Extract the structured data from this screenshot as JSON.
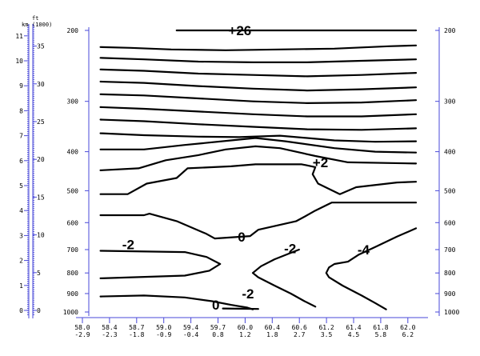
{
  "chart_data": {
    "type": "line",
    "title": "",
    "xlabel": "",
    "ylabel": "",
    "grid": false,
    "pressure_axis": {
      "scale": "log",
      "ticks": [
        200,
        300,
        400,
        500,
        600,
        700,
        800,
        900,
        1000
      ],
      "labels": [
        "200",
        "300",
        "400",
        "500",
        "600",
        "700",
        "800",
        "900",
        "1000"
      ]
    },
    "km_axis": {
      "unit_label": "km",
      "labels": [
        "11",
        "10",
        "9",
        "8",
        "7",
        "6",
        "5",
        "4",
        "3",
        "2",
        "1",
        "0"
      ],
      "ticks": [
        11,
        10,
        9,
        8,
        7,
        6,
        5,
        4,
        3,
        2,
        1,
        0
      ]
    },
    "ft_axis": {
      "unit_label": "ft",
      "unit_sub": "(1000)",
      "labels": [
        "35",
        "30",
        "25",
        "20",
        "15",
        "10",
        "5",
        "0"
      ],
      "ticks": [
        35,
        30,
        25,
        20,
        15,
        10,
        5,
        0
      ]
    },
    "x_axis": {
      "top_labels": [
        "58.0",
        "58.4",
        "58.7",
        "59.0",
        "59.4",
        "59.7",
        "60.0",
        "60.4",
        "60.6",
        "61.2",
        "61.4",
        "61.8",
        "62.0"
      ],
      "bottom_labels": [
        "-2.9",
        "-2.3",
        "-1.8",
        "-0.9",
        "-0.4",
        "0.8",
        "1.2",
        "1.8",
        "2.7",
        "3.5",
        "4.5",
        "5.8",
        "6.2"
      ]
    },
    "annotations": [
      {
        "text": "+26",
        "x": 5.1,
        "p": 200
      },
      {
        "text": "+2",
        "x": 8.2,
        "p": 425
      },
      {
        "text": "0",
        "x": 5.45,
        "p": 650
      },
      {
        "text": "-2",
        "x": 1.2,
        "p": 680
      },
      {
        "text": "-2",
        "x": 7.15,
        "p": 695
      },
      {
        "text": "-4",
        "x": 9.85,
        "p": 700
      },
      {
        "text": "-2",
        "x": 5.6,
        "p": 900
      },
      {
        "text": "0",
        "x": 4.5,
        "p": 960
      }
    ],
    "contours": [
      {
        "x": [
          3.2,
          6.5,
          12.0
        ],
        "p": [
          200,
          200,
          200
        ]
      },
      {
        "x": [
          0.4,
          1.5,
          3,
          5,
          7,
          9,
          11,
          12
        ],
        "p": [
          220,
          221,
          223,
          224,
          223,
          222,
          219,
          218
        ]
      },
      {
        "x": [
          0.4,
          2,
          4,
          6,
          8,
          10,
          12
        ],
        "p": [
          234,
          236,
          239,
          240,
          240,
          238,
          236
        ]
      },
      {
        "x": [
          0.4,
          2,
          4,
          6,
          8,
          10,
          12
        ],
        "p": [
          250,
          252,
          256,
          258,
          260,
          258,
          255
        ]
      },
      {
        "x": [
          0.4,
          2,
          4,
          6,
          8,
          10,
          12
        ],
        "p": [
          268,
          270,
          275,
          279,
          282,
          280,
          277
        ]
      },
      {
        "x": [
          0.4,
          2,
          4,
          6,
          8,
          10,
          12
        ],
        "p": [
          288,
          290,
          295,
          300,
          303,
          302,
          298
        ]
      },
      {
        "x": [
          0.4,
          2,
          4,
          6,
          8,
          10,
          12
        ],
        "p": [
          310,
          313,
          318,
          323,
          327,
          327,
          323
        ]
      },
      {
        "x": [
          0.4,
          2,
          4,
          6,
          8,
          10,
          12
        ],
        "p": [
          333,
          336,
          342,
          347,
          352,
          353,
          350
        ]
      },
      {
        "x": [
          0.4,
          2,
          4,
          5.5,
          7,
          9,
          10.5,
          12
        ],
        "p": [
          360,
          364,
          367,
          368,
          365,
          375,
          378,
          377
        ]
      },
      {
        "x": [
          0.4,
          2,
          3.5,
          5.2,
          6.1,
          7.2,
          9,
          10.5,
          12
        ],
        "p": [
          395,
          395,
          385,
          375,
          370,
          377,
          392,
          400,
          402
        ]
      },
      {
        "x": [
          0.4,
          1.8,
          2.8,
          4,
          5,
          6.1,
          7,
          8.3,
          9.5,
          12
        ],
        "p": [
          445,
          440,
          420,
          408,
          395,
          388,
          392,
          410,
          425,
          428
        ]
      },
      {
        "x": [
          0.4,
          1.4,
          2.1,
          3.2,
          3.6,
          5.2,
          6.1,
          7.8,
          8.3,
          8.2,
          8.4,
          9.2,
          9.8,
          11.3,
          12
        ],
        "p": [
          510,
          510,
          480,
          465,
          440,
          435,
          430,
          430,
          437,
          455,
          480,
          510,
          490,
          477,
          475
        ]
      },
      {
        "x": [
          0.4,
          2,
          2.2,
          3.2,
          4.3,
          4.6,
          5.9,
          6.2,
          7.6,
          7.9,
          8.3,
          8.9,
          12.0
        ],
        "p": [
          575,
          575,
          570,
          595,
          640,
          657,
          648,
          625,
          595,
          580,
          560,
          535,
          535
        ]
      },
      {
        "x": [
          0.4,
          3.5,
          4.3,
          4.8,
          4.4,
          3.5,
          0.4
        ],
        "p": [
          705,
          710,
          730,
          760,
          790,
          812,
          825
        ]
      },
      {
        "x": [
          7.7,
          6.8,
          6.3,
          6.0,
          6.2,
          6.8,
          7.4,
          7.9,
          8.3
        ],
        "p": [
          700,
          740,
          770,
          800,
          820,
          860,
          900,
          940,
          970
        ]
      },
      {
        "x": [
          12.0,
          11.3,
          10.5,
          9.9,
          9.5,
          9.0,
          8.8,
          8.7,
          8.8,
          9.3,
          10.0,
          10.5,
          10.9
        ],
        "p": [
          620,
          650,
          690,
          720,
          750,
          760,
          775,
          800,
          820,
          860,
          910,
          950,
          985
        ]
      },
      {
        "x": [
          0.4,
          2.0,
          3.5,
          4.5,
          5.2,
          5.8,
          6.0
        ],
        "p": [
          915,
          910,
          920,
          940,
          960,
          975,
          985
        ]
      },
      {
        "x": [
          4.9,
          5.8,
          6.2
        ],
        "p": [
          980,
          982,
          983
        ]
      }
    ]
  }
}
